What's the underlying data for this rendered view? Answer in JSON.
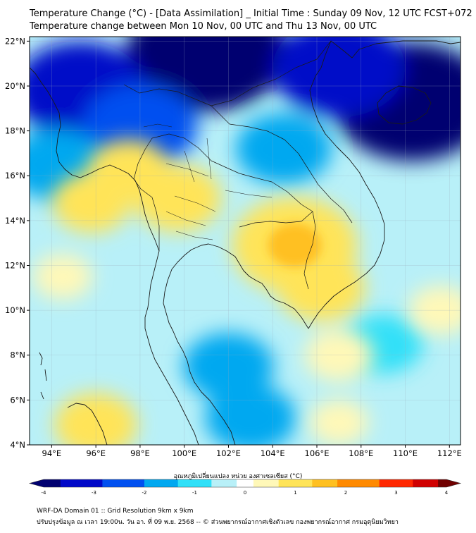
{
  "title": {
    "line1": "Temperature Change (°C) - [Data Assimilation] _ Initial Time : Sunday 09 Nov, 12 UTC FCST+072",
    "line2": "Temperature change between Mon 10 Nov, 00 UTC and Thu 13 Nov, 00 UTC"
  },
  "map": {
    "lon_range": [
      93,
      112.5
    ],
    "lat_range": [
      4,
      22.2
    ],
    "lon_ticks": [
      "94°E",
      "96°E",
      "98°E",
      "100°E",
      "102°E",
      "104°E",
      "106°E",
      "108°E",
      "110°E",
      "112°E"
    ],
    "lon_tick_values": [
      94,
      96,
      98,
      100,
      102,
      104,
      106,
      108,
      110,
      112
    ],
    "lat_ticks": [
      "22°N",
      "20°N",
      "18°N",
      "16°N",
      "14°N",
      "12°N",
      "10°N",
      "8°N",
      "6°N",
      "4°N"
    ],
    "lat_tick_values": [
      22,
      20,
      18,
      16,
      14,
      12,
      10,
      8,
      6,
      4
    ],
    "background_color": "#b8f0f8",
    "warm_areas": [
      {
        "lon": 105.0,
        "lat": 12.9,
        "value": 1.8
      },
      {
        "lon": 99.7,
        "lat": 15.0,
        "value": 1.0
      },
      {
        "lon": 97.5,
        "lat": 16.2,
        "value": 0.9
      },
      {
        "lon": 95.8,
        "lat": 14.8,
        "value": 0.8
      },
      {
        "lon": 106.2,
        "lat": 11.0,
        "value": 1.0
      },
      {
        "lon": 96.0,
        "lat": 4.9,
        "value": 0.9
      },
      {
        "lon": 107.0,
        "lat": 8.0,
        "value": 0.6
      },
      {
        "lon": 111.6,
        "lat": 10.0,
        "value": 0.5
      },
      {
        "lon": 94.5,
        "lat": 11.5,
        "value": 0.4
      },
      {
        "lon": 107.0,
        "lat": 5.0,
        "value": 0.4
      }
    ],
    "cold_areas": [
      {
        "lon": 101.0,
        "lat": 21.5,
        "value": -4.0
      },
      {
        "lon": 110.3,
        "lat": 19.3,
        "value": -4.0
      },
      {
        "lon": 95.3,
        "lat": 19.8,
        "value": -3.0
      },
      {
        "lon": 98.0,
        "lat": 18.2,
        "value": -2.3
      },
      {
        "lon": 107.0,
        "lat": 20.8,
        "value": -3.0
      },
      {
        "lon": 104.5,
        "lat": 17.2,
        "value": -1.6
      },
      {
        "lon": 94.2,
        "lat": 16.5,
        "value": -1.6
      },
      {
        "lon": 102.0,
        "lat": 7.5,
        "value": -1.4
      },
      {
        "lon": 103.0,
        "lat": 5.2,
        "value": -1.4
      },
      {
        "lon": 109.0,
        "lat": 8.5,
        "value": -1.0
      }
    ]
  },
  "colorbar": {
    "title": "อุณหภูมิเปลี่ยนแปลง หน่วย องศาเซลเซียส (°C)",
    "min": -4,
    "max": 4,
    "tick_labels": [
      "-4",
      "-3",
      "-2",
      "-1",
      "0",
      "1",
      "2",
      "3",
      "4"
    ],
    "tick_values": [
      -4,
      -3,
      -2,
      -1,
      0,
      1,
      2,
      3,
      4
    ],
    "stops": [
      {
        "v": -4.0,
        "color": "#000070"
      },
      {
        "v": -3.2,
        "color": "#0008c8"
      },
      {
        "v": -2.4,
        "color": "#0050f0"
      },
      {
        "v": -1.6,
        "color": "#00a8f0"
      },
      {
        "v": -1.0,
        "color": "#30e0f8"
      },
      {
        "v": -0.4,
        "color": "#b8f0f8"
      },
      {
        "v": 0.0,
        "color": "#ffffff"
      },
      {
        "v": 0.4,
        "color": "#fff8b8"
      },
      {
        "v": 1.0,
        "color": "#ffe458"
      },
      {
        "v": 1.6,
        "color": "#ffc020"
      },
      {
        "v": 2.2,
        "color": "#ff8a00"
      },
      {
        "v": 3.0,
        "color": "#ff2800"
      },
      {
        "v": 3.6,
        "color": "#d00000"
      },
      {
        "v": 4.0,
        "color": "#700000"
      }
    ]
  },
  "footer": {
    "line1": "WRF-DA Domain 01 :: Grid Resolution 9km x 9km",
    "line2": "ปรับปรุงข้อมูล ณ เวลา 19:00น. วัน อา. ที่ 09 พ.ย. 2568 -- © ส่วนพยากรณ์อากาศเชิงตัวเลข กองพยากรณ์อากาศ กรมอุตุนิยมวิทยา"
  }
}
